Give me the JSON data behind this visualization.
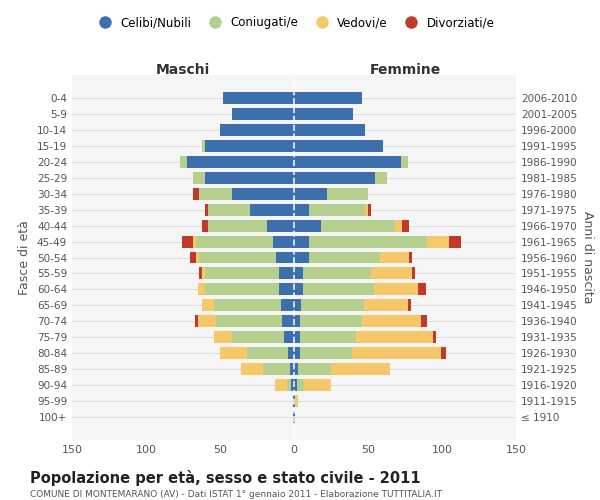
{
  "age_groups": [
    "100+",
    "95-99",
    "90-94",
    "85-89",
    "80-84",
    "75-79",
    "70-74",
    "65-69",
    "60-64",
    "55-59",
    "50-54",
    "45-49",
    "40-44",
    "35-39",
    "30-34",
    "25-29",
    "20-24",
    "15-19",
    "10-14",
    "5-9",
    "0-4"
  ],
  "birth_years": [
    "≤ 1910",
    "1911-1915",
    "1916-1920",
    "1921-1925",
    "1926-1930",
    "1931-1935",
    "1936-1940",
    "1941-1945",
    "1946-1950",
    "1951-1955",
    "1956-1960",
    "1961-1965",
    "1966-1970",
    "1971-1975",
    "1976-1980",
    "1981-1985",
    "1986-1990",
    "1991-1995",
    "1996-2000",
    "2001-2005",
    "2006-2010"
  ],
  "males": {
    "celibi": [
      1,
      1,
      2,
      3,
      4,
      7,
      8,
      9,
      10,
      10,
      12,
      14,
      18,
      30,
      42,
      60,
      72,
      60,
      50,
      42,
      48
    ],
    "coniugati": [
      0,
      0,
      3,
      18,
      28,
      35,
      45,
      45,
      50,
      50,
      52,
      52,
      40,
      28,
      22,
      8,
      5,
      2,
      0,
      0,
      0
    ],
    "vedovi": [
      0,
      0,
      8,
      15,
      18,
      12,
      12,
      8,
      5,
      2,
      2,
      2,
      0,
      0,
      0,
      0,
      0,
      0,
      0,
      0,
      0
    ],
    "divorziati": [
      0,
      0,
      0,
      0,
      0,
      0,
      2,
      0,
      0,
      2,
      4,
      8,
      4,
      2,
      4,
      0,
      0,
      0,
      0,
      0,
      0
    ]
  },
  "females": {
    "nubili": [
      1,
      1,
      2,
      3,
      4,
      4,
      4,
      5,
      6,
      6,
      10,
      10,
      18,
      10,
      22,
      55,
      72,
      60,
      48,
      40,
      46
    ],
    "coniugate": [
      0,
      0,
      5,
      22,
      35,
      38,
      42,
      42,
      48,
      46,
      48,
      80,
      50,
      38,
      28,
      8,
      5,
      0,
      0,
      0,
      0
    ],
    "vedove": [
      0,
      2,
      18,
      40,
      60,
      52,
      40,
      30,
      30,
      28,
      20,
      15,
      5,
      2,
      0,
      0,
      0,
      0,
      0,
      0,
      0
    ],
    "divorziate": [
      0,
      0,
      0,
      0,
      4,
      2,
      4,
      2,
      5,
      2,
      2,
      8,
      5,
      2,
      0,
      0,
      0,
      0,
      0,
      0,
      0
    ]
  },
  "colors": {
    "celibi": "#3d6fad",
    "coniugati": "#b5cf8f",
    "vedovi": "#f5c96a",
    "divorziati": "#c0392b"
  },
  "title": "Popolazione per età, sesso e stato civile - 2011",
  "subtitle": "COMUNE DI MONTEMARANO (AV) - Dati ISTAT 1° gennaio 2011 - Elaborazione TUTTITALIA.IT",
  "xlabel_left": "Maschi",
  "xlabel_right": "Femmine",
  "ylabel_left": "Fasce di età",
  "ylabel_right": "Anni di nascita",
  "xlim": 150,
  "legend_labels": [
    "Celibi/Nubili",
    "Coniugati/e",
    "Vedovi/e",
    "Divorziati/e"
  ],
  "bg_color": "#ffffff",
  "grid_color": "#cccccc"
}
